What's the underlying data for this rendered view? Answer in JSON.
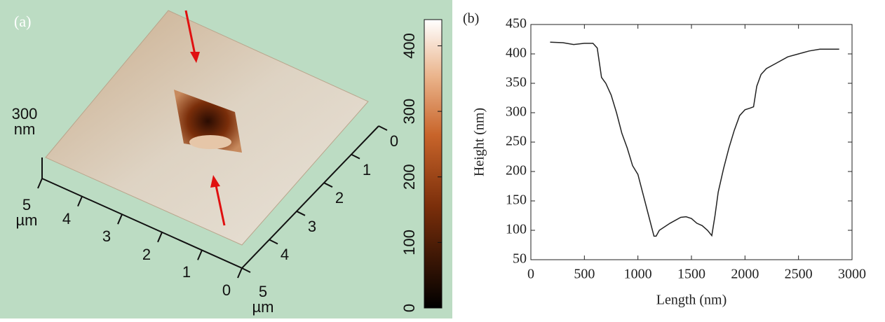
{
  "chart_data": [
    {
      "type": "surface",
      "label": "(a)",
      "z_scale_label": "300 nm",
      "xlim": [
        0,
        5
      ],
      "xticks": [
        0,
        1,
        2,
        3,
        4,
        {
          "value": 5,
          "label": "5 µm"
        }
      ],
      "ylim": [
        0,
        5
      ],
      "yticks": [
        0,
        1,
        2,
        3,
        4,
        {
          "value": 5,
          "label": "5 µm"
        }
      ],
      "clim": [
        0,
        440
      ],
      "cticks": [
        0,
        100,
        200,
        300,
        400
      ]
    },
    {
      "type": "line",
      "label": "(b)",
      "x_label": "Length (nm)",
      "y_label": "Height (nm)",
      "color": "#222222",
      "x": [
        180,
        300,
        400,
        500,
        580,
        620,
        660,
        700,
        750,
        800,
        850,
        900,
        950,
        1000,
        1050,
        1100,
        1150,
        1170,
        1200,
        1300,
        1400,
        1450,
        1500,
        1550,
        1600,
        1650,
        1690,
        1720,
        1750,
        1800,
        1850,
        1900,
        1950,
        2000,
        2050,
        2080,
        2110,
        2150,
        2200,
        2300,
        2400,
        2500,
        2600,
        2700,
        2800,
        2880
      ],
      "values": [
        420,
        419,
        416,
        418,
        418,
        410,
        360,
        350,
        330,
        300,
        265,
        240,
        210,
        195,
        160,
        125,
        90,
        90,
        100,
        112,
        122,
        123,
        120,
        112,
        108,
        100,
        91,
        125,
        165,
        205,
        240,
        270,
        295,
        305,
        308,
        310,
        345,
        365,
        375,
        385,
        395,
        400,
        405,
        408,
        408,
        408
      ],
      "xlim": [
        0,
        3000
      ],
      "xticks": [
        0,
        500,
        1000,
        1500,
        2000,
        2500,
        3000
      ],
      "ylim": [
        50,
        450
      ],
      "yticks": [
        50,
        100,
        150,
        200,
        250,
        300,
        350,
        400,
        450
      ]
    }
  ]
}
